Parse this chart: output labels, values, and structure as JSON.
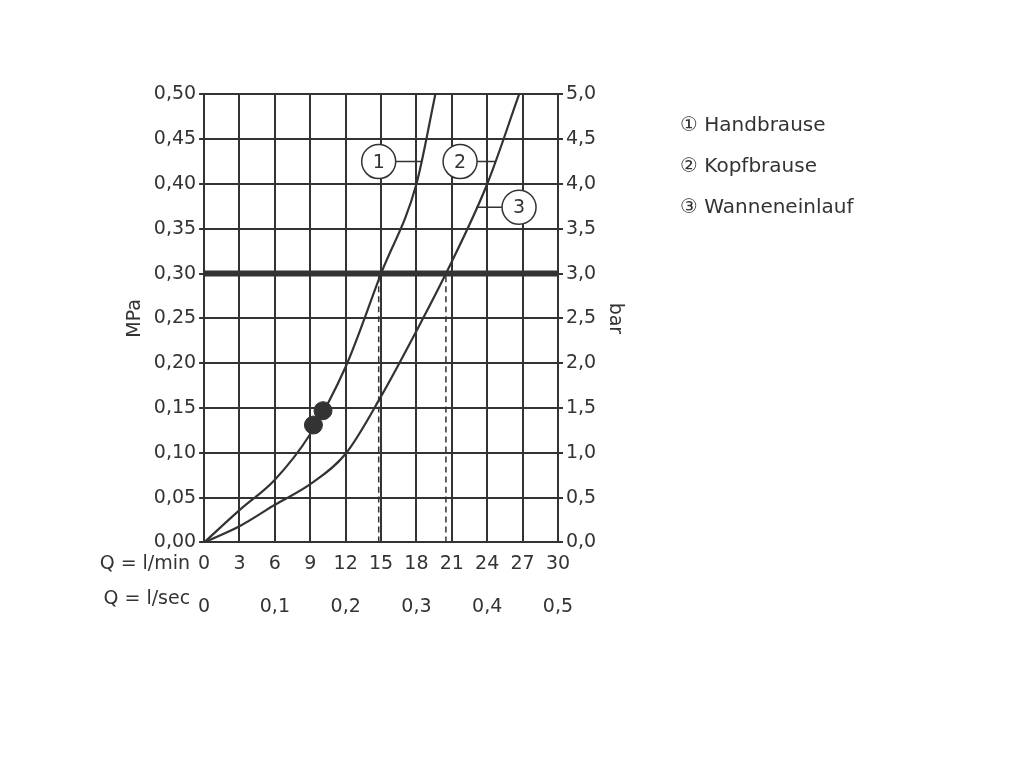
{
  "chart_data": {
    "type": "line",
    "ylabel": "MPa",
    "y2label": "bar",
    "xlabel": "Q = l/min",
    "x2label": "Q = l/sec",
    "xlim": [
      0,
      30
    ],
    "xticks": [
      0,
      3,
      6,
      9,
      12,
      15,
      18,
      21,
      24,
      27,
      30
    ],
    "x2lim": [
      0,
      0.5
    ],
    "x2ticks": [
      0,
      {
        "value": 0.1,
        "label": "0,1"
      },
      {
        "value": 0.2,
        "label": "0,2"
      },
      {
        "value": 0.3,
        "label": "0,3"
      },
      {
        "value": 0.4,
        "label": "0,4"
      },
      {
        "value": 0.5,
        "label": "0,5"
      }
    ],
    "ylim": [
      0,
      0.5
    ],
    "yticks": [
      {
        "value": 0,
        "label": "0,00"
      },
      {
        "value": 0.05,
        "label": "0,05"
      },
      {
        "value": 0.1,
        "label": "0,10"
      },
      {
        "value": 0.15,
        "label": "0,15"
      },
      {
        "value": 0.2,
        "label": "0,20"
      },
      {
        "value": 0.25,
        "label": "0,25"
      },
      {
        "value": 0.3,
        "label": "0,30"
      },
      {
        "value": 0.35,
        "label": "0,35"
      },
      {
        "value": 0.4,
        "label": "0,40"
      },
      {
        "value": 0.45,
        "label": "0,45"
      },
      {
        "value": 0.5,
        "label": "0,50"
      }
    ],
    "y2lim": [
      0,
      5
    ],
    "y2ticks": [
      {
        "value": 0,
        "label": "0,0"
      },
      {
        "value": 0.5,
        "label": "0,5"
      },
      {
        "value": 1,
        "label": "1,0"
      },
      {
        "value": 1.5,
        "label": "1,5"
      },
      {
        "value": 2,
        "label": "2,0"
      },
      {
        "value": 2.5,
        "label": "2,5"
      },
      {
        "value": 3,
        "label": "3,0"
      },
      {
        "value": 3.5,
        "label": "3,5"
      },
      {
        "value": 4,
        "label": "4,0"
      },
      {
        "value": 4.5,
        "label": "4,5"
      },
      {
        "value": 5,
        "label": "5,0"
      }
    ],
    "grid": true,
    "legend": false,
    "series": [
      {
        "color": "#333333",
        "x": [
          0,
          3,
          6,
          9,
          12,
          15,
          18,
          19.6
        ],
        "values": [
          0,
          0.036,
          0.07,
          0.121,
          0.196,
          0.3,
          0.4,
          0.5
        ]
      },
      {
        "color": "#333333",
        "x": [
          0,
          3,
          6,
          9,
          12,
          15,
          18,
          20.5,
          24,
          26.7
        ],
        "values": [
          0,
          0.018,
          0.042,
          0.065,
          0.099,
          0.163,
          0.236,
          0.3,
          0.4,
          0.5
        ]
      },
      {
        "color": "#333333",
        "line_style": "dashed",
        "x": [
          14.8,
          14.8
        ],
        "values": [
          0,
          0.3
        ]
      },
      {
        "color": "#333333",
        "line_style": "dashed",
        "x": [
          20.5,
          20.5
        ],
        "values": [
          0,
          0.3
        ]
      },
      {
        "type": "scatter",
        "color": "#333333",
        "marker": "circle",
        "x": [
          9.27,
          10.08
        ],
        "values": [
          0.131,
          0.147
        ]
      }
    ],
    "ref_lines": [
      {
        "axis": "y",
        "value": 0.3,
        "color": "#333333"
      }
    ],
    "annotations": [
      {
        "text": "1",
        "x": 14.8,
        "y": 0.425
      },
      {
        "text": "2",
        "x": 21.7,
        "y": 0.425
      },
      {
        "text": "3",
        "x": 26.7,
        "y": 0.374
      },
      "① Handbrause",
      "② Kopfbrause",
      "③ Wanneneinlauf"
    ]
  }
}
